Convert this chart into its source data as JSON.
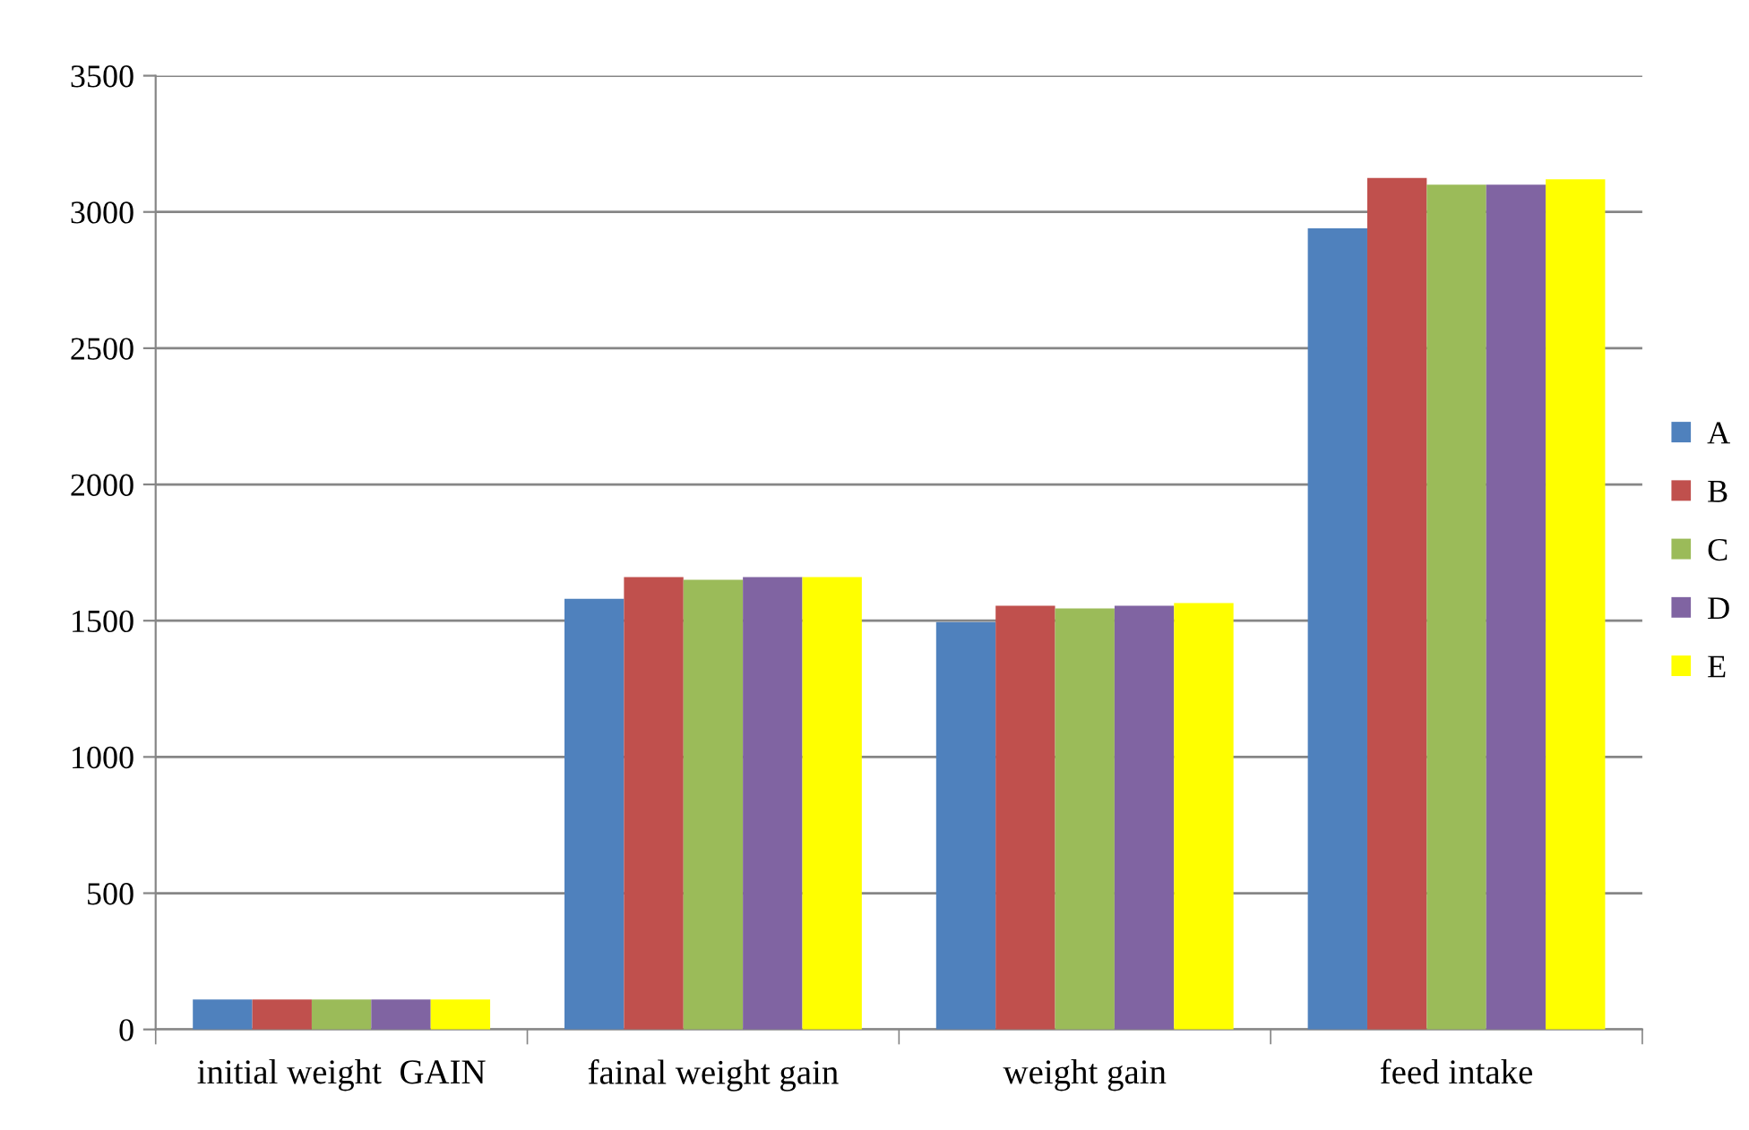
{
  "chart_data": {
    "type": "bar",
    "categories": [
      "initial weight  GAIN",
      "fainal weight gain",
      "weight gain",
      "feed intake"
    ],
    "series": [
      {
        "name": "A",
        "color": "#4f81bd",
        "values": [
          110,
          1580,
          1495,
          2940
        ]
      },
      {
        "name": "B",
        "color": "#c0504d",
        "values": [
          110,
          1660,
          1555,
          3125
        ]
      },
      {
        "name": "C",
        "color": "#9bbb59",
        "values": [
          110,
          1650,
          1545,
          3100
        ]
      },
      {
        "name": "D",
        "color": "#8064a2",
        "values": [
          110,
          1660,
          1555,
          3100
        ]
      },
      {
        "name": "E",
        "color": "#ffff00",
        "values": [
          110,
          1660,
          1565,
          3120
        ]
      }
    ],
    "ylim": [
      0,
      3500
    ],
    "yticks": [
      0,
      500,
      1000,
      1500,
      2000,
      2500,
      3000,
      3500
    ],
    "grid": "y",
    "legend": "right"
  }
}
